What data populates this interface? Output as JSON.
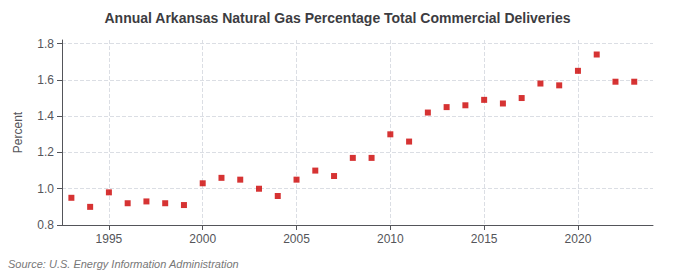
{
  "chart_data": {
    "type": "scatter",
    "title": "Annual Arkansas Natural Gas Percentage Total Commercial Deliveries",
    "ylabel": "Percent",
    "source": "Source: U.S. Energy Information Administration",
    "x": [
      1993,
      1994,
      1995,
      1996,
      1997,
      1998,
      1999,
      2000,
      2001,
      2002,
      2003,
      2004,
      2005,
      2006,
      2007,
      2008,
      2009,
      2010,
      2011,
      2012,
      2013,
      2014,
      2015,
      2016,
      2017,
      2018,
      2019,
      2020,
      2021,
      2022,
      2023
    ],
    "values": [
      0.95,
      0.9,
      0.98,
      0.92,
      0.93,
      0.92,
      0.91,
      1.03,
      1.06,
      1.05,
      1.0,
      0.96,
      1.05,
      1.1,
      1.07,
      1.17,
      1.17,
      1.3,
      1.26,
      1.42,
      1.45,
      1.46,
      1.49,
      1.47,
      1.5,
      1.58,
      1.57,
      1.65,
      1.74,
      1.59,
      1.59
    ],
    "color": "#cc0000",
    "marker": "square",
    "xlim": [
      1992.5,
      2024
    ],
    "xticks": [
      1995,
      2000,
      2005,
      2010,
      2015,
      2020
    ],
    "ylim": [
      0.8,
      1.82
    ],
    "yticks": [
      0.8,
      {
        "value": 1.0,
        "label": "1.0"
      },
      1.2,
      1.4,
      1.6,
      1.8
    ],
    "grid": true
  }
}
